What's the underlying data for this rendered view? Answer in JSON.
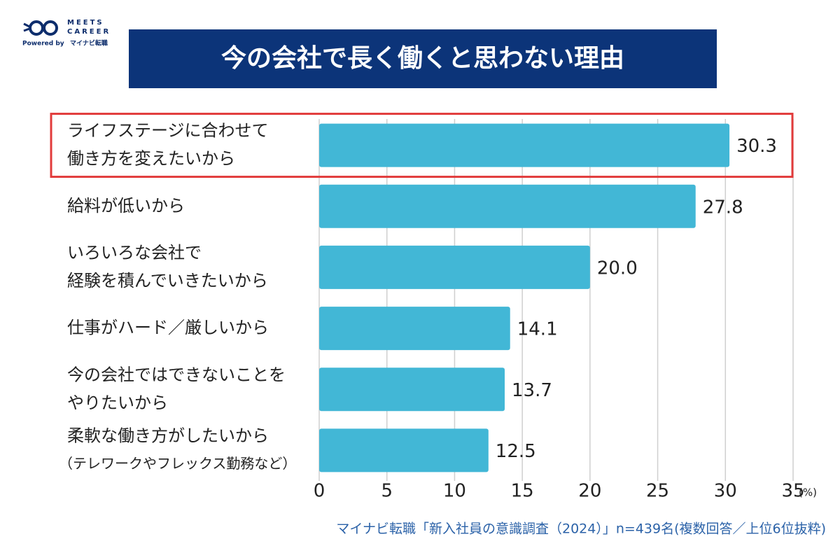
{
  "logo": {
    "name": [
      "MEETS",
      "CAREER"
    ],
    "powered_by": "Powered by",
    "brand": "マイナビ転職"
  },
  "chart_data": {
    "type": "hbar",
    "title": "今の会社で長く働くと思わない理由",
    "categories": [
      [
        "ライフステージに合わせて",
        "働き方を変えたいから"
      ],
      [
        "給料が低いから"
      ],
      [
        "いろいろな会社で",
        "経験を積んでいきたいから"
      ],
      [
        "仕事がハード／厳しいから"
      ],
      [
        "今の会社ではできないことを",
        "やりたいから"
      ],
      [
        "柔軟な働き方がしたいから",
        "（テレワークやフレックス勤務など）"
      ]
    ],
    "values": [
      30.3,
      27.8,
      20.0,
      14.1,
      13.7,
      12.5
    ],
    "value_labels": [
      "30.3",
      "27.8",
      "20.0",
      "14.1",
      "13.7",
      "12.5"
    ],
    "color": "#42b7d6",
    "xlim": [
      0,
      35
    ],
    "xticks": [
      0,
      5,
      10,
      15,
      20,
      25,
      30,
      35
    ],
    "x_unit": "(%)",
    "grid": true,
    "highlighted_category": 0,
    "highlight_color": "#e23b3b",
    "source": "マイナビ転職「新入社員の意識調査（2024）」n=439名(複数回答／上位6位抜粋)"
  }
}
